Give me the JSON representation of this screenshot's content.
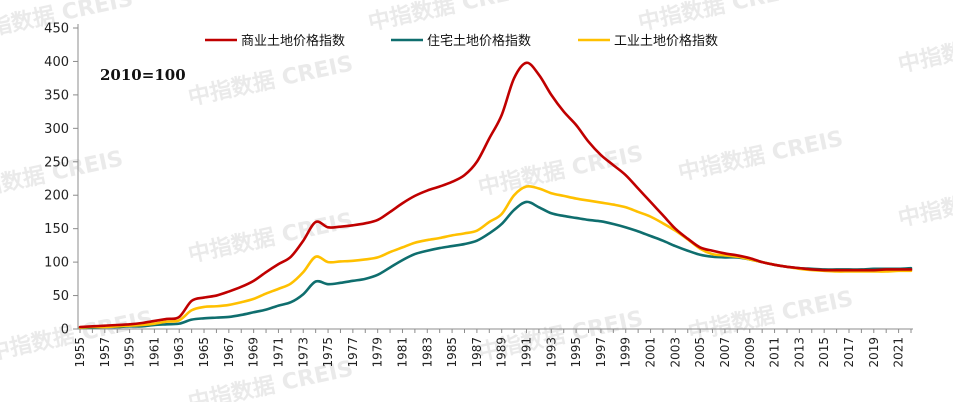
{
  "chart_data": {
    "type": "line",
    "title": "",
    "xlabel": "",
    "ylabel": "",
    "annotation": "2010=100",
    "ylim": [
      0,
      450
    ],
    "yticks": [
      0,
      50,
      100,
      150,
      200,
      250,
      300,
      350,
      400,
      450
    ],
    "xlim": [
      1955,
      2022
    ],
    "xticks": [
      1955,
      1957,
      1959,
      1961,
      1963,
      1965,
      1967,
      1969,
      1971,
      1973,
      1975,
      1977,
      1979,
      1981,
      1983,
      1985,
      1987,
      1989,
      1991,
      1993,
      1995,
      1997,
      1999,
      2001,
      2003,
      2005,
      2007,
      2009,
      2011,
      2013,
      2015,
      2017,
      2019,
      2021
    ],
    "legend_position": "top",
    "grid": false,
    "x": [
      1955,
      1956,
      1957,
      1958,
      1959,
      1960,
      1961,
      1962,
      1963,
      1964,
      1965,
      1966,
      1967,
      1968,
      1969,
      1970,
      1971,
      1972,
      1973,
      1974,
      1975,
      1976,
      1977,
      1978,
      1979,
      1980,
      1981,
      1982,
      1983,
      1984,
      1985,
      1986,
      1987,
      1988,
      1989,
      1990,
      1991,
      1992,
      1993,
      1994,
      1995,
      1996,
      1997,
      1998,
      1999,
      2000,
      2001,
      2002,
      2003,
      2004,
      2005,
      2006,
      2007,
      2008,
      2009,
      2010,
      2011,
      2012,
      2013,
      2014,
      2015,
      2016,
      2017,
      2018,
      2019,
      2020,
      2021,
      2022
    ],
    "series": [
      {
        "name": "商业土地价格指数",
        "color": "#c00000",
        "values": [
          3,
          4,
          5,
          6,
          7,
          9,
          12,
          15,
          18,
          42,
          47,
          50,
          56,
          63,
          72,
          85,
          97,
          108,
          132,
          160,
          152,
          153,
          155,
          158,
          163,
          175,
          188,
          199,
          207,
          213,
          220,
          230,
          250,
          285,
          320,
          375,
          398,
          380,
          350,
          325,
          305,
          280,
          260,
          245,
          230,
          210,
          190,
          170,
          150,
          135,
          122,
          117,
          113,
          110,
          106,
          100,
          96,
          93,
          91,
          89,
          88,
          88,
          88,
          88,
          88,
          89,
          89,
          89
        ]
      },
      {
        "name": "住宅土地价格指数",
        "color": "#0f6e6e",
        "values": [
          2,
          2,
          3,
          3,
          4,
          4,
          6,
          7,
          8,
          14,
          16,
          17,
          18,
          21,
          25,
          29,
          35,
          40,
          52,
          71,
          67,
          69,
          72,
          75,
          81,
          92,
          103,
          112,
          117,
          121,
          124,
          127,
          132,
          143,
          157,
          178,
          190,
          182,
          173,
          169,
          166,
          163,
          161,
          157,
          152,
          146,
          139,
          132,
          124,
          117,
          111,
          108,
          107,
          107,
          104,
          100,
          96,
          93,
          91,
          90,
          89,
          89,
          89,
          89,
          90,
          90,
          90,
          91
        ]
      },
      {
        "name": "工业土地价格指数",
        "color": "#ffc000",
        "values": [
          2,
          3,
          3,
          4,
          5,
          6,
          8,
          11,
          13,
          28,
          33,
          34,
          36,
          40,
          45,
          53,
          60,
          68,
          85,
          108,
          100,
          101,
          102,
          104,
          107,
          115,
          122,
          129,
          133,
          136,
          140,
          143,
          147,
          160,
          172,
          200,
          213,
          210,
          203,
          199,
          195,
          192,
          189,
          186,
          182,
          175,
          168,
          158,
          147,
          134,
          120,
          112,
          110,
          108,
          104,
          100,
          96,
          93,
          90,
          88,
          87,
          86,
          86,
          86,
          86,
          86,
          87,
          87
        ]
      }
    ]
  },
  "watermark": {
    "text": "中指数据  CREIS"
  }
}
